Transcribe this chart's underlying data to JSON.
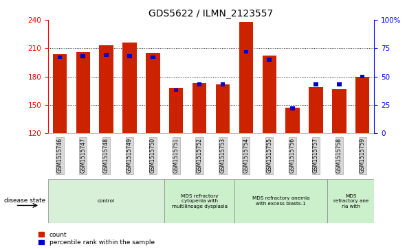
{
  "title": "GDS5622 / ILMN_2123557",
  "samples": [
    "GSM1515746",
    "GSM1515747",
    "GSM1515748",
    "GSM1515749",
    "GSM1515750",
    "GSM1515751",
    "GSM1515752",
    "GSM1515753",
    "GSM1515754",
    "GSM1515755",
    "GSM1515756",
    "GSM1515757",
    "GSM1515758",
    "GSM1515759"
  ],
  "counts": [
    204,
    206,
    213,
    216,
    205,
    168,
    173,
    172,
    238,
    202,
    147,
    169,
    167,
    180
  ],
  "percentile_ranks": [
    67,
    68,
    69,
    68,
    67,
    38,
    43,
    43,
    72,
    65,
    22,
    43,
    43,
    50
  ],
  "y_min": 120,
  "y_max": 240,
  "y_ticks_red": [
    120,
    150,
    180,
    210,
    240
  ],
  "y_ticks_blue": [
    0,
    25,
    50,
    75,
    100
  ],
  "bar_color": "#cc2200",
  "percentile_color": "#0000cc",
  "plot_bg": "#ffffff",
  "disease_groups": [
    {
      "label": "control",
      "start": 0,
      "end": 5,
      "color": "#d8f0d8"
    },
    {
      "label": "MDS refractory\ncytopenia with\nmultilineage dysplasia",
      "start": 5,
      "end": 8,
      "color": "#ccf0cc"
    },
    {
      "label": "MDS refractory anemia\nwith excess blasts-1",
      "start": 8,
      "end": 12,
      "color": "#ccf0cc"
    },
    {
      "label": "MDS\nrefractory ane\nria with",
      "start": 12,
      "end": 14,
      "color": "#ccf0cc"
    }
  ],
  "disease_state_label": "disease state",
  "legend_count_label": "count",
  "legend_percentile_label": "percentile rank within the sample"
}
